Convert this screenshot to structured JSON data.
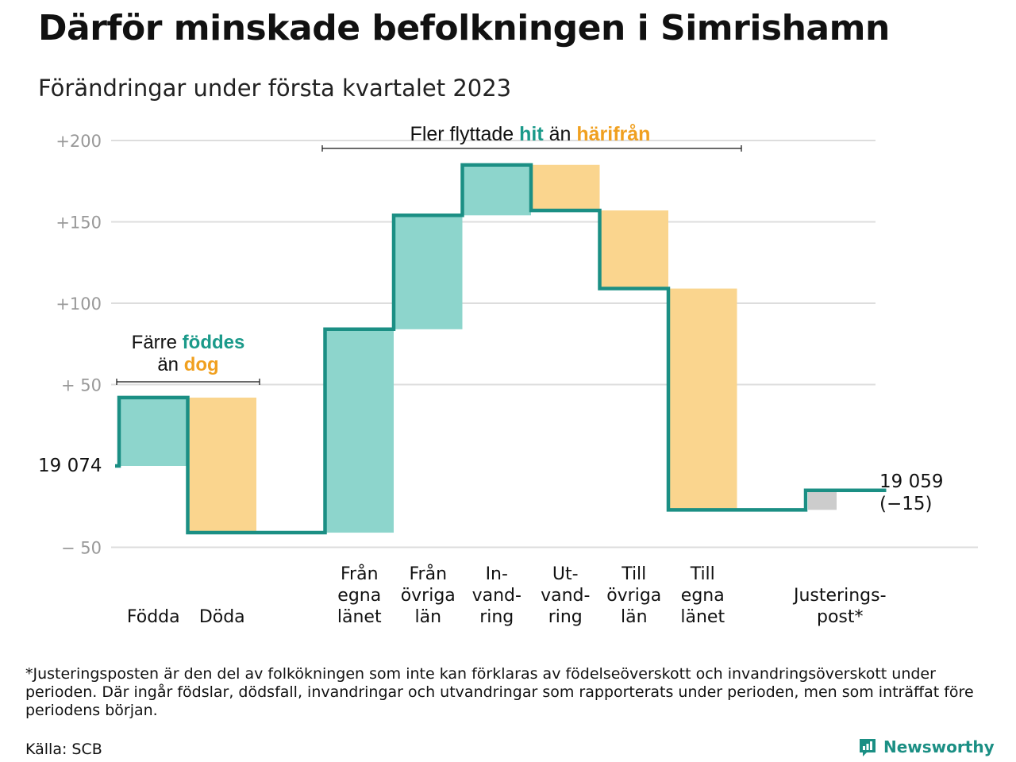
{
  "title": "Därför minskade befolkningen i Simrishamn",
  "subtitle": "Förändringar under första kvartalet 2023",
  "chart_data": {
    "type": "waterfall",
    "start_value": 19074,
    "start_label": "19 074",
    "end_label_value": "19 059",
    "end_label_change": "(−15)",
    "y_ticks": [
      {
        "value": 200,
        "label": "+200"
      },
      {
        "value": 150,
        "label": "+150"
      },
      {
        "value": 100,
        "label": "+100"
      },
      {
        "value": 50,
        "label": "+ 50"
      },
      {
        "value": -50,
        "label": "− 50"
      }
    ],
    "steps": [
      {
        "label": [
          "",
          "",
          "Födda"
        ],
        "delta": 42,
        "kind": "in"
      },
      {
        "label": [
          "",
          "",
          "Döda"
        ],
        "delta": -83,
        "kind": "out"
      },
      {
        "label": [
          "",
          "",
          ""
        ],
        "delta": 0,
        "kind": "gap"
      },
      {
        "label": [
          "Från",
          "egna",
          "länet"
        ],
        "delta": 125,
        "kind": "in"
      },
      {
        "label": [
          "Från",
          "övriga",
          "län"
        ],
        "delta": 70,
        "kind": "in"
      },
      {
        "label": [
          "In-",
          "vand-",
          "ring"
        ],
        "delta": 31,
        "kind": "in"
      },
      {
        "label": [
          "Ut-",
          "vand-",
          "ring"
        ],
        "delta": -28,
        "kind": "out"
      },
      {
        "label": [
          "Till",
          "övriga",
          "län"
        ],
        "delta": -48,
        "kind": "out"
      },
      {
        "label": [
          "Till",
          "egna",
          "länet"
        ],
        "delta": -136,
        "kind": "out"
      },
      {
        "label": [
          "",
          "",
          ""
        ],
        "delta": 0,
        "kind": "gap"
      },
      {
        "label": [
          "",
          "Justerings-",
          "post*"
        ],
        "delta": 12,
        "kind": "adj"
      }
    ],
    "annotation_left": {
      "line1_a": "Färre ",
      "line1_b": "föddes",
      "line2_a": "än ",
      "line2_b": "dog"
    },
    "annotation_top": {
      "a": "Fler flyttade ",
      "b": "hit",
      "c": " än ",
      "d": "härifrån"
    },
    "colors": {
      "in": "#8dd5cc",
      "out": "#fad58e",
      "adj": "#cccccc",
      "line": "#1b8f84",
      "teal_text": "#1b9a8a",
      "orange_text": "#f0a020",
      "grid": "#dddddd",
      "tick": "#999999"
    }
  },
  "footnote": "*Justeringsposten är den del av folkökningen som inte kan förklaras av födelseöverskott och invandringsöverskott under perioden. Där ingår födslar, dödsfall, invandringar och utvandringar som rapporterats under perioden, men som inträffat före periodens början.",
  "source": "Källa: SCB",
  "logo_text": "Newsworthy"
}
